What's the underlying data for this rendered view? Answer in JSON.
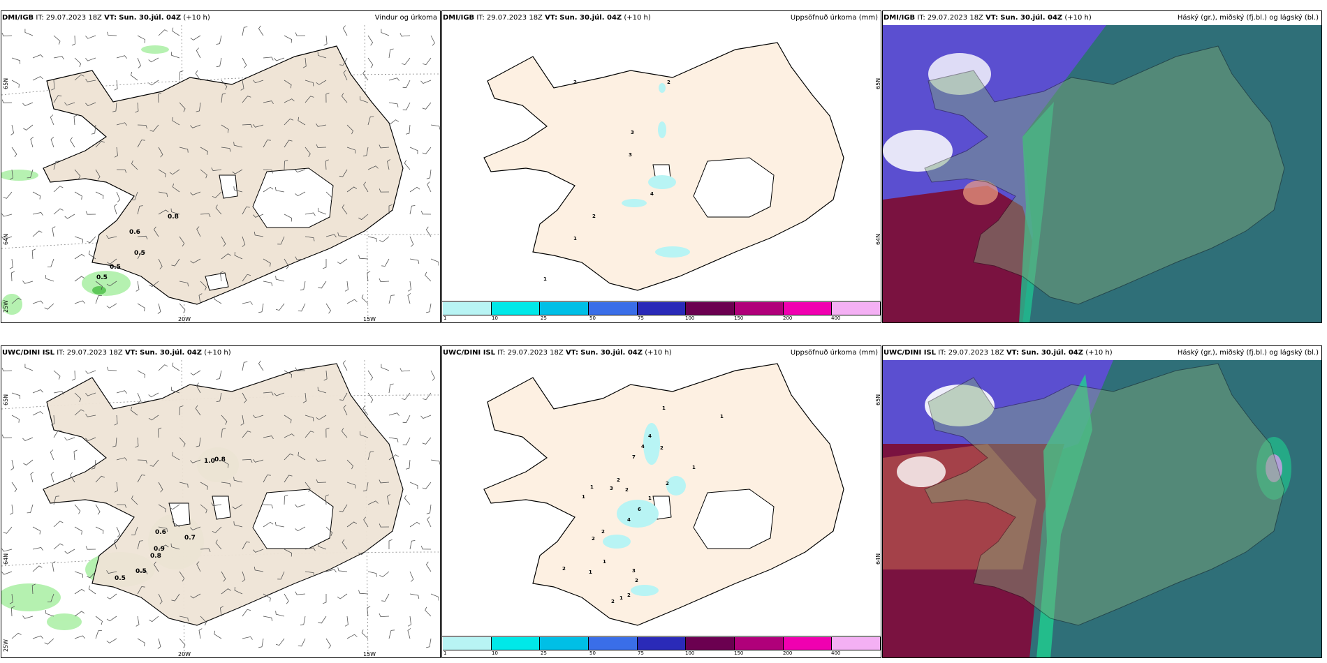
{
  "rows": [
    {
      "model": "DMI/IGB",
      "it_label": "IT:",
      "it_value": "29.07.2023 18Z",
      "vt_label": "VT:",
      "vt_value": "Sun. 30.júl. 04Z",
      "lead": "(+10 h)",
      "titles": [
        "Vindur og úrkoma",
        "Uppsöfnuð úrkoma (mm)",
        "Háský (gr.), miðský (fj.bl.) og lágský (bl.)"
      ],
      "wind_labels": [
        "0.8",
        "0.6",
        "0.5",
        "0.5",
        "0.5"
      ],
      "accum_labels": [
        "2",
        "2",
        "3",
        "3",
        "4",
        "2",
        "1",
        "1"
      ]
    },
    {
      "model": "UWC/DINI ISL",
      "it_label": "IT:",
      "it_value": "29.07.2023 18Z",
      "vt_label": "VT:",
      "vt_value": "Sun. 30.júl. 04Z",
      "lead": "(+10 h)",
      "titles": [
        "",
        "Uppsöfnuð úrkoma (mm)",
        "Háský (gr.), miðský (fj.bl.) og lágský (bl.)"
      ],
      "wind_labels": [
        "1.0",
        "0.8",
        "0.6",
        "0.7",
        "0.9",
        "0.8",
        "0.5",
        "0.5"
      ],
      "accum_labels": [
        "1",
        "1",
        "4",
        "4",
        "2",
        "7",
        "1",
        "2",
        "2",
        "1",
        "3",
        "2",
        "1",
        "1",
        "6",
        "4",
        "2",
        "2",
        "1",
        "1",
        "2",
        "3",
        "2",
        "2",
        "1",
        "2"
      ]
    }
  ],
  "axis": {
    "lat_labels": [
      "65N",
      "64N",
      "25W"
    ],
    "lon_labels": [
      "20W",
      "15W"
    ],
    "right_lat_labels": [
      "65N",
      "64N"
    ]
  },
  "legend": {
    "ticks": [
      "1",
      "10",
      "25",
      "50",
      "75",
      "100",
      "150",
      "200",
      "400"
    ],
    "colors": [
      "#b8f4f4",
      "#00e8e8",
      "#00bfe6",
      "#3a6ee8",
      "#2a2ab8",
      "#6b0050",
      "#b0007a",
      "#f000b0",
      "#f4b0f4"
    ]
  },
  "colors": {
    "land": "#efe4d6",
    "land_accum": "#fdf0e2",
    "ice": "#ffffff",
    "precip": "#aef0a8",
    "precip_dark": "#5fc85a",
    "cloud_high": "#2f6f78",
    "cloud_mid": "#5b4fd0",
    "cloud_low": "#7a1240"
  }
}
